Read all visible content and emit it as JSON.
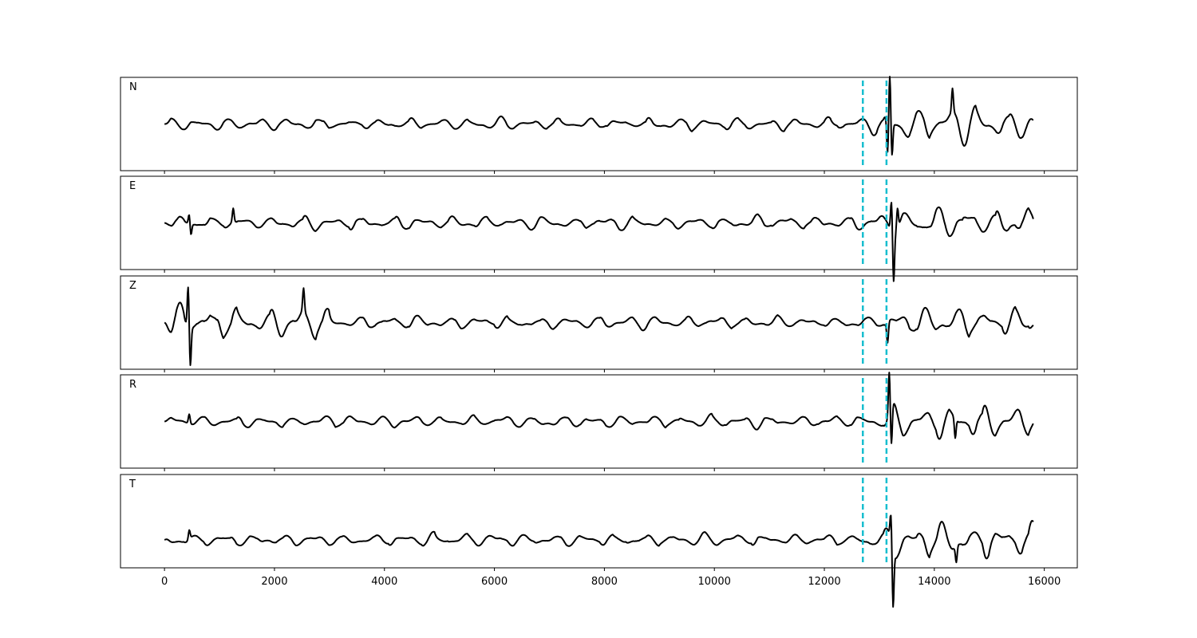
{
  "chart_data": {
    "type": "line",
    "title": "",
    "xlabel": "",
    "ylabel": "",
    "xlim": [
      -800,
      16600
    ],
    "x_ticks": [
      0,
      2000,
      4000,
      6000,
      8000,
      10000,
      12000,
      14000,
      16000
    ],
    "x_tick_labels": [
      "0",
      "2000",
      "4000",
      "6000",
      "8000",
      "10000",
      "12000",
      "14000",
      "16000"
    ],
    "samples": 15800,
    "grid": false,
    "trace_color": "#000000",
    "pick_color": "#17becf",
    "picks": [
      12700,
      13130
    ],
    "panels": [
      {
        "label": "N",
        "ylim": [
          -1.0,
          1.0
        ],
        "events": [
          {
            "start": 0,
            "end": 12700,
            "amp": 0.12
          },
          {
            "start": 12700,
            "end": 13130,
            "amp": 0.22
          },
          {
            "start": 13130,
            "end": 15800,
            "amp": 0.36
          }
        ],
        "spikes": [
          {
            "x": 13150,
            "value": -0.78
          },
          {
            "x": 13190,
            "value": 0.98
          },
          {
            "x": 13230,
            "value": -0.72
          },
          {
            "x": 14330,
            "value": 0.52
          }
        ]
      },
      {
        "label": "E",
        "ylim": [
          -1.0,
          1.0
        ],
        "events": [
          {
            "start": 0,
            "end": 12700,
            "amp": 0.14
          },
          {
            "start": 12700,
            "end": 13130,
            "amp": 0.2
          },
          {
            "start": 13130,
            "end": 15800,
            "amp": 0.32
          }
        ],
        "spikes": [
          {
            "x": 450,
            "value": 0.22
          },
          {
            "x": 480,
            "value": -0.25
          },
          {
            "x": 1250,
            "value": 0.3
          },
          {
            "x": 13220,
            "value": 0.68
          },
          {
            "x": 13260,
            "value": -1.0
          },
          {
            "x": 13330,
            "value": 0.45
          }
        ]
      },
      {
        "label": "Z",
        "ylim": [
          -1.0,
          1.0
        ],
        "events": [
          {
            "start": 0,
            "end": 3000,
            "amp": 0.3
          },
          {
            "start": 3000,
            "end": 12700,
            "amp": 0.13
          },
          {
            "start": 12700,
            "end": 13130,
            "amp": 0.15
          },
          {
            "start": 13130,
            "end": 15800,
            "amp": 0.28
          }
        ],
        "spikes": [
          {
            "x": 430,
            "value": 0.88
          },
          {
            "x": 470,
            "value": -0.82
          },
          {
            "x": 2530,
            "value": 0.5
          },
          {
            "x": 13150,
            "value": -0.45
          }
        ]
      },
      {
        "label": "R",
        "ylim": [
          -1.0,
          1.0
        ],
        "events": [
          {
            "start": 0,
            "end": 12700,
            "amp": 0.13
          },
          {
            "start": 12700,
            "end": 13130,
            "amp": 0.2
          },
          {
            "start": 13130,
            "end": 15800,
            "amp": 0.33
          }
        ],
        "spikes": [
          {
            "x": 450,
            "value": 0.2
          },
          {
            "x": 13180,
            "value": 0.95
          },
          {
            "x": 13220,
            "value": -0.82
          },
          {
            "x": 14380,
            "value": -0.42
          }
        ]
      },
      {
        "label": "T",
        "ylim": [
          -0.6,
          1.4
        ],
        "events": [
          {
            "start": 0,
            "end": 12700,
            "amp": 0.13
          },
          {
            "start": 12700,
            "end": 13130,
            "amp": 0.2
          },
          {
            "start": 13130,
            "end": 15800,
            "amp": 0.33
          }
        ],
        "spikes": [
          {
            "x": 450,
            "value": 0.2
          },
          {
            "x": 13210,
            "value": 0.55
          },
          {
            "x": 13250,
            "value": -1.25
          },
          {
            "x": 14400,
            "value": -0.35
          }
        ]
      }
    ]
  }
}
